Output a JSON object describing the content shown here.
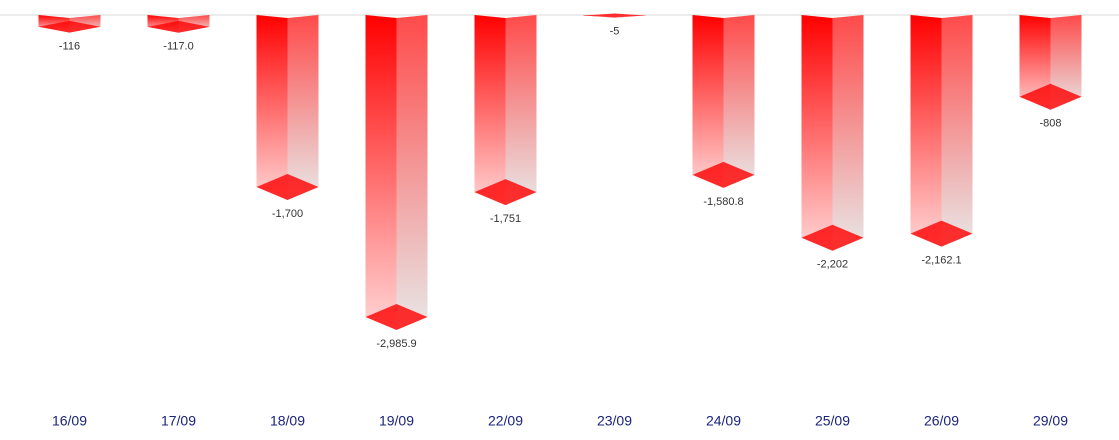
{
  "chart_data": {
    "type": "bar",
    "categories": [
      "16/09",
      "17/09",
      "18/09",
      "19/09",
      "22/09",
      "23/09",
      "24/09",
      "25/09",
      "26/09",
      "29/09"
    ],
    "values": [
      -116,
      -117.0,
      -1700,
      -2985.9,
      -1751,
      -5,
      -1580.8,
      -2202,
      -2162.1,
      -808
    ],
    "value_labels": [
      "-116",
      "-117.0",
      "-1,700",
      "-2,985.9",
      "-1,751",
      "-5",
      "-1,580.8",
      "-2,202",
      "-2,162.1",
      "-808"
    ],
    "color": "#ff0000",
    "ylim": [
      -3500,
      0
    ]
  }
}
